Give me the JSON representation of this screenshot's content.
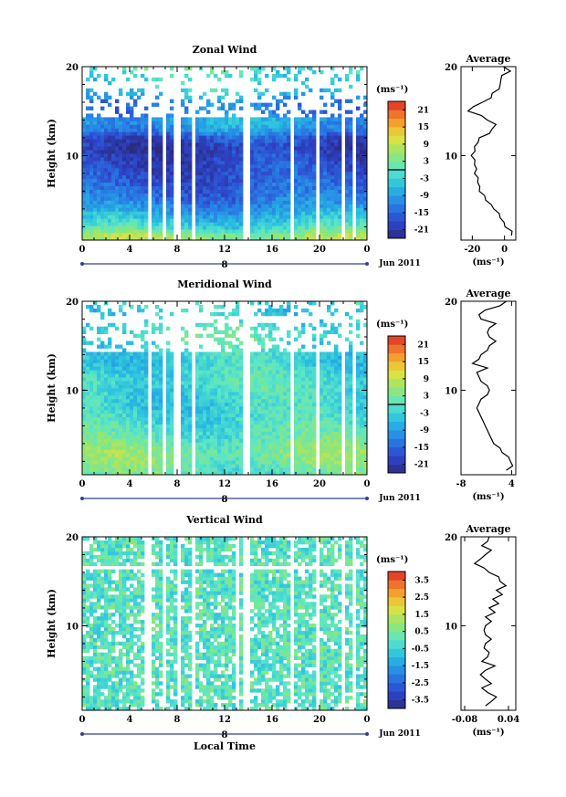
{
  "figure": {
    "x_axis_title": "Local Time",
    "date_label": "Jun 2011",
    "day_label": "8",
    "colorbar_unit": "(ms⁻¹)",
    "average_title": "Average",
    "average_unit": "(ms⁻¹)"
  },
  "chart_data": [
    {
      "type": "heatmap",
      "title": "Zonal Wind",
      "ylabel": "Height (km)",
      "xlabel": "",
      "x_ticks": [
        "0",
        "4",
        "8",
        "12",
        "16",
        "20",
        "0"
      ],
      "y_ticks": [
        "10",
        "20"
      ],
      "xlim": [
        0,
        24
      ],
      "ylim": [
        0.5,
        20
      ],
      "colorbar": {
        "unit": "(ms⁻¹)",
        "ticks": [
          "21",
          "15",
          "9",
          "3",
          "-3",
          "-9",
          "-15",
          "-21"
        ],
        "range": [
          -24,
          24
        ],
        "contour_level": 0
      },
      "gaps_hours": [
        [
          5.5,
          5.9
        ],
        [
          6.7,
          7.0
        ],
        [
          7.8,
          8.4
        ],
        [
          9.3,
          9.6
        ],
        [
          13.6,
          14.1
        ],
        [
          17.5,
          17.8
        ],
        [
          19.6,
          19.9
        ],
        [
          21.7,
          22.0
        ],
        [
          22.8,
          23.1
        ]
      ],
      "profile": [
        {
          "h": 1,
          "v": 6
        },
        {
          "h": 2,
          "v": -2
        },
        {
          "h": 3,
          "v": -6
        },
        {
          "h": 4,
          "v": -10
        },
        {
          "h": 5,
          "v": -13
        },
        {
          "h": 6,
          "v": -15
        },
        {
          "h": 7,
          "v": -16
        },
        {
          "h": 8,
          "v": -17
        },
        {
          "h": 9,
          "v": -18
        },
        {
          "h": 10,
          "v": -19
        },
        {
          "h": 11,
          "v": -20
        },
        {
          "h": 12,
          "v": -17
        },
        {
          "h": 13,
          "v": -10
        },
        {
          "h": 14,
          "v": -8
        },
        {
          "h": 15,
          "v": -13
        },
        {
          "h": 16,
          "v": -12
        },
        {
          "h": 17,
          "v": -5
        },
        {
          "h": 18,
          "v": -2
        },
        {
          "h": 19,
          "v": -3
        },
        {
          "h": 20,
          "v": 1
        }
      ],
      "average": {
        "title": "Average",
        "unit": "(ms⁻¹)",
        "x_ticks": [
          "-20",
          "0"
        ],
        "y_ticks": [
          "10",
          "20"
        ],
        "xlim": [
          -27,
          7
        ],
        "ylim": [
          0.5,
          20
        ],
        "x_tick_values": [
          -20,
          0
        ],
        "points": [
          {
            "h": 1.0,
            "v": 5
          },
          {
            "h": 1.5,
            "v": 4
          },
          {
            "h": 2.0,
            "v": 1
          },
          {
            "h": 2.5,
            "v": -1
          },
          {
            "h": 3.0,
            "v": -2
          },
          {
            "h": 3.5,
            "v": -4
          },
          {
            "h": 4.0,
            "v": -6
          },
          {
            "h": 4.5,
            "v": -9
          },
          {
            "h": 5.0,
            "v": -11
          },
          {
            "h": 5.5,
            "v": -13
          },
          {
            "h": 6.0,
            "v": -15
          },
          {
            "h": 6.5,
            "v": -16
          },
          {
            "h": 7.0,
            "v": -16
          },
          {
            "h": 7.5,
            "v": -17
          },
          {
            "h": 8.0,
            "v": -18
          },
          {
            "h": 8.5,
            "v": -18
          },
          {
            "h": 9.0,
            "v": -18
          },
          {
            "h": 9.5,
            "v": -19
          },
          {
            "h": 10.0,
            "v": -20
          },
          {
            "h": 10.5,
            "v": -19
          },
          {
            "h": 11.0,
            "v": -18
          },
          {
            "h": 11.5,
            "v": -17
          },
          {
            "h": 12.0,
            "v": -15
          },
          {
            "h": 12.5,
            "v": -10
          },
          {
            "h": 13.0,
            "v": -7
          },
          {
            "h": 13.5,
            "v": -6
          },
          {
            "h": 14.0,
            "v": -10
          },
          {
            "h": 14.5,
            "v": -15
          },
          {
            "h": 15.0,
            "v": -22
          },
          {
            "h": 15.5,
            "v": -20
          },
          {
            "h": 16.0,
            "v": -13
          },
          {
            "h": 16.5,
            "v": -9
          },
          {
            "h": 17.0,
            "v": -7
          },
          {
            "h": 17.5,
            "v": -4
          },
          {
            "h": 18.0,
            "v": -2
          },
          {
            "h": 18.5,
            "v": -3
          },
          {
            "h": 19.0,
            "v": -1
          },
          {
            "h": 19.5,
            "v": 3
          },
          {
            "h": 20.0,
            "v": 0
          }
        ]
      }
    },
    {
      "type": "heatmap",
      "title": "Meridional Wind",
      "ylabel": "Height (km)",
      "xlabel": "",
      "x_ticks": [
        "0",
        "4",
        "8",
        "12",
        "16",
        "20",
        "0"
      ],
      "y_ticks": [
        "10",
        "20"
      ],
      "xlim": [
        0,
        24
      ],
      "ylim": [
        0.5,
        20
      ],
      "colorbar": {
        "unit": "(ms⁻¹)",
        "ticks": [
          "21",
          "15",
          "9",
          "3",
          "-3",
          "-9",
          "-15",
          "-21"
        ],
        "range": [
          -24,
          24
        ],
        "contour_level": 0
      },
      "gaps_hours": [
        [
          5.5,
          5.9
        ],
        [
          6.7,
          7.0
        ],
        [
          7.8,
          8.4
        ],
        [
          9.3,
          9.6
        ],
        [
          13.6,
          14.1
        ],
        [
          17.5,
          17.8
        ],
        [
          19.6,
          19.9
        ],
        [
          21.7,
          22.0
        ],
        [
          22.8,
          23.1
        ]
      ],
      "profile": [
        {
          "h": 1,
          "v": 1
        },
        {
          "h": 2,
          "v": 3
        },
        {
          "h": 3,
          "v": 4
        },
        {
          "h": 4,
          "v": 2
        },
        {
          "h": 5,
          "v": 0
        },
        {
          "h": 6,
          "v": -1
        },
        {
          "h": 7,
          "v": -2
        },
        {
          "h": 8,
          "v": -3
        },
        {
          "h": 9,
          "v": -3
        },
        {
          "h": 10,
          "v": -2
        },
        {
          "h": 11,
          "v": -1
        },
        {
          "h": 12,
          "v": -2
        },
        {
          "h": 13,
          "v": -4
        },
        {
          "h": 14,
          "v": -3
        },
        {
          "h": 15,
          "v": -2
        },
        {
          "h": 16,
          "v": 0
        },
        {
          "h": 17,
          "v": -1
        },
        {
          "h": 18,
          "v": -3
        },
        {
          "h": 19,
          "v": -4
        },
        {
          "h": 20,
          "v": 0
        }
      ],
      "average": {
        "title": "Average",
        "unit": "(ms⁻¹)",
        "x_ticks": [
          "-8",
          "4"
        ],
        "y_ticks": [
          "10",
          "20"
        ],
        "xlim": [
          -8,
          5
        ],
        "ylim": [
          0.5,
          20
        ],
        "x_tick_values": [
          -8,
          4
        ],
        "points": [
          {
            "h": 1.0,
            "v": 3
          },
          {
            "h": 1.5,
            "v": 4
          },
          {
            "h": 2.0,
            "v": 4
          },
          {
            "h": 2.5,
            "v": 3
          },
          {
            "h": 3.0,
            "v": 2
          },
          {
            "h": 3.5,
            "v": 1
          },
          {
            "h": 4.0,
            "v": 0
          },
          {
            "h": 4.5,
            "v": -1
          },
          {
            "h": 5.0,
            "v": -1
          },
          {
            "h": 5.5,
            "v": -2
          },
          {
            "h": 6.0,
            "v": -2
          },
          {
            "h": 6.5,
            "v": -3
          },
          {
            "h": 7.0,
            "v": -3
          },
          {
            "h": 7.5,
            "v": -4
          },
          {
            "h": 8.0,
            "v": -4
          },
          {
            "h": 8.5,
            "v": -4
          },
          {
            "h": 9.0,
            "v": -3
          },
          {
            "h": 9.5,
            "v": -2
          },
          {
            "h": 10.0,
            "v": -1
          },
          {
            "h": 10.5,
            "v": -2
          },
          {
            "h": 11.0,
            "v": -3
          },
          {
            "h": 11.5,
            "v": -4
          },
          {
            "h": 12.0,
            "v": -4
          },
          {
            "h": 12.5,
            "v": -2
          },
          {
            "h": 13.0,
            "v": -5
          },
          {
            "h": 13.5,
            "v": -4
          },
          {
            "h": 14.0,
            "v": -3
          },
          {
            "h": 14.5,
            "v": -2
          },
          {
            "h": 15.0,
            "v": -1
          },
          {
            "h": 15.5,
            "v": 0
          },
          {
            "h": 16.0,
            "v": -1
          },
          {
            "h": 16.5,
            "v": -2
          },
          {
            "h": 17.0,
            "v": -1
          },
          {
            "h": 17.5,
            "v": 0
          },
          {
            "h": 18.0,
            "v": -3
          },
          {
            "h": 18.5,
            "v": -4
          },
          {
            "h": 19.0,
            "v": -2
          },
          {
            "h": 19.5,
            "v": 1
          },
          {
            "h": 20.0,
            "v": 3
          }
        ]
      }
    },
    {
      "type": "heatmap",
      "title": "Vertical Wind",
      "ylabel": "Height (km)",
      "xlabel": "Local Time",
      "x_ticks": [
        "0",
        "4",
        "8",
        "12",
        "16",
        "20",
        "0"
      ],
      "y_ticks": [
        "10",
        "20"
      ],
      "xlim": [
        0,
        24
      ],
      "ylim": [
        0.5,
        20
      ],
      "colorbar": {
        "unit": "(ms⁻¹)",
        "ticks": [
          "3.5",
          "2.5",
          "1.5",
          "0.5",
          "-0.5",
          "-1.5",
          "-2.5",
          "-3.5"
        ],
        "range": [
          -4,
          4
        ]
      },
      "gaps_hours": [
        [
          5.3,
          5.7
        ],
        [
          6.7,
          7.0
        ],
        [
          7.9,
          8.4
        ],
        [
          9.3,
          9.6
        ],
        [
          12.9,
          13.2
        ],
        [
          13.6,
          14.0
        ],
        [
          17.5,
          17.8
        ],
        [
          19.6,
          19.9
        ],
        [
          21.7,
          22.0
        ],
        [
          22.8,
          23.1
        ]
      ],
      "profile": [
        {
          "h": 1,
          "v": 0
        },
        {
          "h": 5,
          "v": 0
        },
        {
          "h": 10,
          "v": 0
        },
        {
          "h": 15,
          "v": 0
        },
        {
          "h": 20,
          "v": 0
        }
      ],
      "average": {
        "title": "Average",
        "unit": "(ms⁻¹)",
        "x_ticks": [
          "-0.08",
          "0.04"
        ],
        "y_ticks": [
          "10",
          "20"
        ],
        "xlim": [
          -0.09,
          0.06
        ],
        "ylim": [
          0.5,
          20
        ],
        "x_tick_values": [
          -0.08,
          0.04
        ],
        "points": [
          {
            "h": 1.0,
            "v": -0.02
          },
          {
            "h": 1.5,
            "v": -0.01
          },
          {
            "h": 2.0,
            "v": 0.01
          },
          {
            "h": 2.5,
            "v": -0.02
          },
          {
            "h": 3.0,
            "v": -0.03
          },
          {
            "h": 3.5,
            "v": -0.01
          },
          {
            "h": 4.0,
            "v": -0.02
          },
          {
            "h": 4.5,
            "v": -0.04
          },
          {
            "h": 5.0,
            "v": -0.02
          },
          {
            "h": 5.5,
            "v": 0.0
          },
          {
            "h": 6.0,
            "v": -0.03
          },
          {
            "h": 6.5,
            "v": -0.02
          },
          {
            "h": 7.0,
            "v": -0.01
          },
          {
            "h": 7.5,
            "v": -0.03
          },
          {
            "h": 8.0,
            "v": -0.02
          },
          {
            "h": 8.5,
            "v": -0.01
          },
          {
            "h": 9.0,
            "v": -0.02
          },
          {
            "h": 9.5,
            "v": -0.03
          },
          {
            "h": 10.0,
            "v": -0.02
          },
          {
            "h": 10.5,
            "v": -0.01
          },
          {
            "h": 11.0,
            "v": -0.02
          },
          {
            "h": 11.5,
            "v": 0.0
          },
          {
            "h": 12.0,
            "v": -0.01
          },
          {
            "h": 12.5,
            "v": 0.01
          },
          {
            "h": 13.0,
            "v": 0.0
          },
          {
            "h": 13.5,
            "v": 0.02
          },
          {
            "h": 14.0,
            "v": 0.01
          },
          {
            "h": 14.5,
            "v": 0.03
          },
          {
            "h": 15.0,
            "v": 0.02
          },
          {
            "h": 15.5,
            "v": 0.01
          },
          {
            "h": 16.0,
            "v": -0.01
          },
          {
            "h": 16.5,
            "v": -0.03
          },
          {
            "h": 17.0,
            "v": -0.05
          },
          {
            "h": 17.5,
            "v": -0.04
          },
          {
            "h": 18.0,
            "v": -0.02
          },
          {
            "h": 18.5,
            "v": -0.01
          },
          {
            "h": 19.0,
            "v": -0.03
          },
          {
            "h": 19.5,
            "v": -0.02
          },
          {
            "h": 20.0,
            "v": -0.01
          }
        ]
      }
    }
  ]
}
